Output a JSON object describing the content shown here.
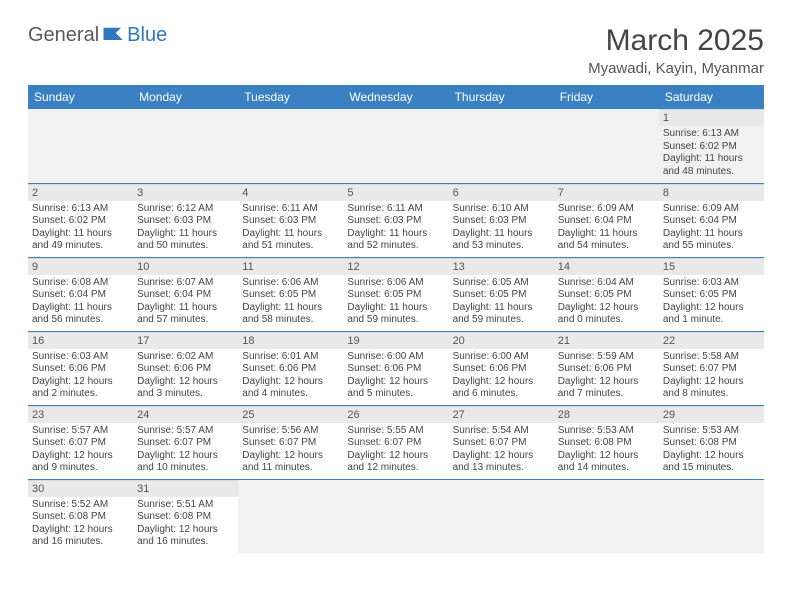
{
  "logo": {
    "part1": "General",
    "part2": "Blue"
  },
  "title": "March 2025",
  "location": "Myawadi, Kayin, Myanmar",
  "colors": {
    "brand": "#3a81c4",
    "logoBlue": "#2f78bd",
    "lightGrey": "#e9e9e9"
  },
  "dayHeaders": [
    "Sunday",
    "Monday",
    "Tuesday",
    "Wednesday",
    "Thursday",
    "Friday",
    "Saturday"
  ],
  "weeks": [
    [
      null,
      null,
      null,
      null,
      null,
      null,
      {
        "n": "1",
        "sr": "Sunrise: 6:13 AM",
        "ss": "Sunset: 6:02 PM",
        "dl": "Daylight: 11 hours and 48 minutes."
      }
    ],
    [
      {
        "n": "2",
        "sr": "Sunrise: 6:13 AM",
        "ss": "Sunset: 6:02 PM",
        "dl": "Daylight: 11 hours and 49 minutes."
      },
      {
        "n": "3",
        "sr": "Sunrise: 6:12 AM",
        "ss": "Sunset: 6:03 PM",
        "dl": "Daylight: 11 hours and 50 minutes."
      },
      {
        "n": "4",
        "sr": "Sunrise: 6:11 AM",
        "ss": "Sunset: 6:03 PM",
        "dl": "Daylight: 11 hours and 51 minutes."
      },
      {
        "n": "5",
        "sr": "Sunrise: 6:11 AM",
        "ss": "Sunset: 6:03 PM",
        "dl": "Daylight: 11 hours and 52 minutes."
      },
      {
        "n": "6",
        "sr": "Sunrise: 6:10 AM",
        "ss": "Sunset: 6:03 PM",
        "dl": "Daylight: 11 hours and 53 minutes."
      },
      {
        "n": "7",
        "sr": "Sunrise: 6:09 AM",
        "ss": "Sunset: 6:04 PM",
        "dl": "Daylight: 11 hours and 54 minutes."
      },
      {
        "n": "8",
        "sr": "Sunrise: 6:09 AM",
        "ss": "Sunset: 6:04 PM",
        "dl": "Daylight: 11 hours and 55 minutes."
      }
    ],
    [
      {
        "n": "9",
        "sr": "Sunrise: 6:08 AM",
        "ss": "Sunset: 6:04 PM",
        "dl": "Daylight: 11 hours and 56 minutes."
      },
      {
        "n": "10",
        "sr": "Sunrise: 6:07 AM",
        "ss": "Sunset: 6:04 PM",
        "dl": "Daylight: 11 hours and 57 minutes."
      },
      {
        "n": "11",
        "sr": "Sunrise: 6:06 AM",
        "ss": "Sunset: 6:05 PM",
        "dl": "Daylight: 11 hours and 58 minutes."
      },
      {
        "n": "12",
        "sr": "Sunrise: 6:06 AM",
        "ss": "Sunset: 6:05 PM",
        "dl": "Daylight: 11 hours and 59 minutes."
      },
      {
        "n": "13",
        "sr": "Sunrise: 6:05 AM",
        "ss": "Sunset: 6:05 PM",
        "dl": "Daylight: 11 hours and 59 minutes."
      },
      {
        "n": "14",
        "sr": "Sunrise: 6:04 AM",
        "ss": "Sunset: 6:05 PM",
        "dl": "Daylight: 12 hours and 0 minutes."
      },
      {
        "n": "15",
        "sr": "Sunrise: 6:03 AM",
        "ss": "Sunset: 6:05 PM",
        "dl": "Daylight: 12 hours and 1 minute."
      }
    ],
    [
      {
        "n": "16",
        "sr": "Sunrise: 6:03 AM",
        "ss": "Sunset: 6:06 PM",
        "dl": "Daylight: 12 hours and 2 minutes."
      },
      {
        "n": "17",
        "sr": "Sunrise: 6:02 AM",
        "ss": "Sunset: 6:06 PM",
        "dl": "Daylight: 12 hours and 3 minutes."
      },
      {
        "n": "18",
        "sr": "Sunrise: 6:01 AM",
        "ss": "Sunset: 6:06 PM",
        "dl": "Daylight: 12 hours and 4 minutes."
      },
      {
        "n": "19",
        "sr": "Sunrise: 6:00 AM",
        "ss": "Sunset: 6:06 PM",
        "dl": "Daylight: 12 hours and 5 minutes."
      },
      {
        "n": "20",
        "sr": "Sunrise: 6:00 AM",
        "ss": "Sunset: 6:06 PM",
        "dl": "Daylight: 12 hours and 6 minutes."
      },
      {
        "n": "21",
        "sr": "Sunrise: 5:59 AM",
        "ss": "Sunset: 6:06 PM",
        "dl": "Daylight: 12 hours and 7 minutes."
      },
      {
        "n": "22",
        "sr": "Sunrise: 5:58 AM",
        "ss": "Sunset: 6:07 PM",
        "dl": "Daylight: 12 hours and 8 minutes."
      }
    ],
    [
      {
        "n": "23",
        "sr": "Sunrise: 5:57 AM",
        "ss": "Sunset: 6:07 PM",
        "dl": "Daylight: 12 hours and 9 minutes."
      },
      {
        "n": "24",
        "sr": "Sunrise: 5:57 AM",
        "ss": "Sunset: 6:07 PM",
        "dl": "Daylight: 12 hours and 10 minutes."
      },
      {
        "n": "25",
        "sr": "Sunrise: 5:56 AM",
        "ss": "Sunset: 6:07 PM",
        "dl": "Daylight: 12 hours and 11 minutes."
      },
      {
        "n": "26",
        "sr": "Sunrise: 5:55 AM",
        "ss": "Sunset: 6:07 PM",
        "dl": "Daylight: 12 hours and 12 minutes."
      },
      {
        "n": "27",
        "sr": "Sunrise: 5:54 AM",
        "ss": "Sunset: 6:07 PM",
        "dl": "Daylight: 12 hours and 13 minutes."
      },
      {
        "n": "28",
        "sr": "Sunrise: 5:53 AM",
        "ss": "Sunset: 6:08 PM",
        "dl": "Daylight: 12 hours and 14 minutes."
      },
      {
        "n": "29",
        "sr": "Sunrise: 5:53 AM",
        "ss": "Sunset: 6:08 PM",
        "dl": "Daylight: 12 hours and 15 minutes."
      }
    ],
    [
      {
        "n": "30",
        "sr": "Sunrise: 5:52 AM",
        "ss": "Sunset: 6:08 PM",
        "dl": "Daylight: 12 hours and 16 minutes."
      },
      {
        "n": "31",
        "sr": "Sunrise: 5:51 AM",
        "ss": "Sunset: 6:08 PM",
        "dl": "Daylight: 12 hours and 16 minutes."
      },
      null,
      null,
      null,
      null,
      null
    ]
  ]
}
